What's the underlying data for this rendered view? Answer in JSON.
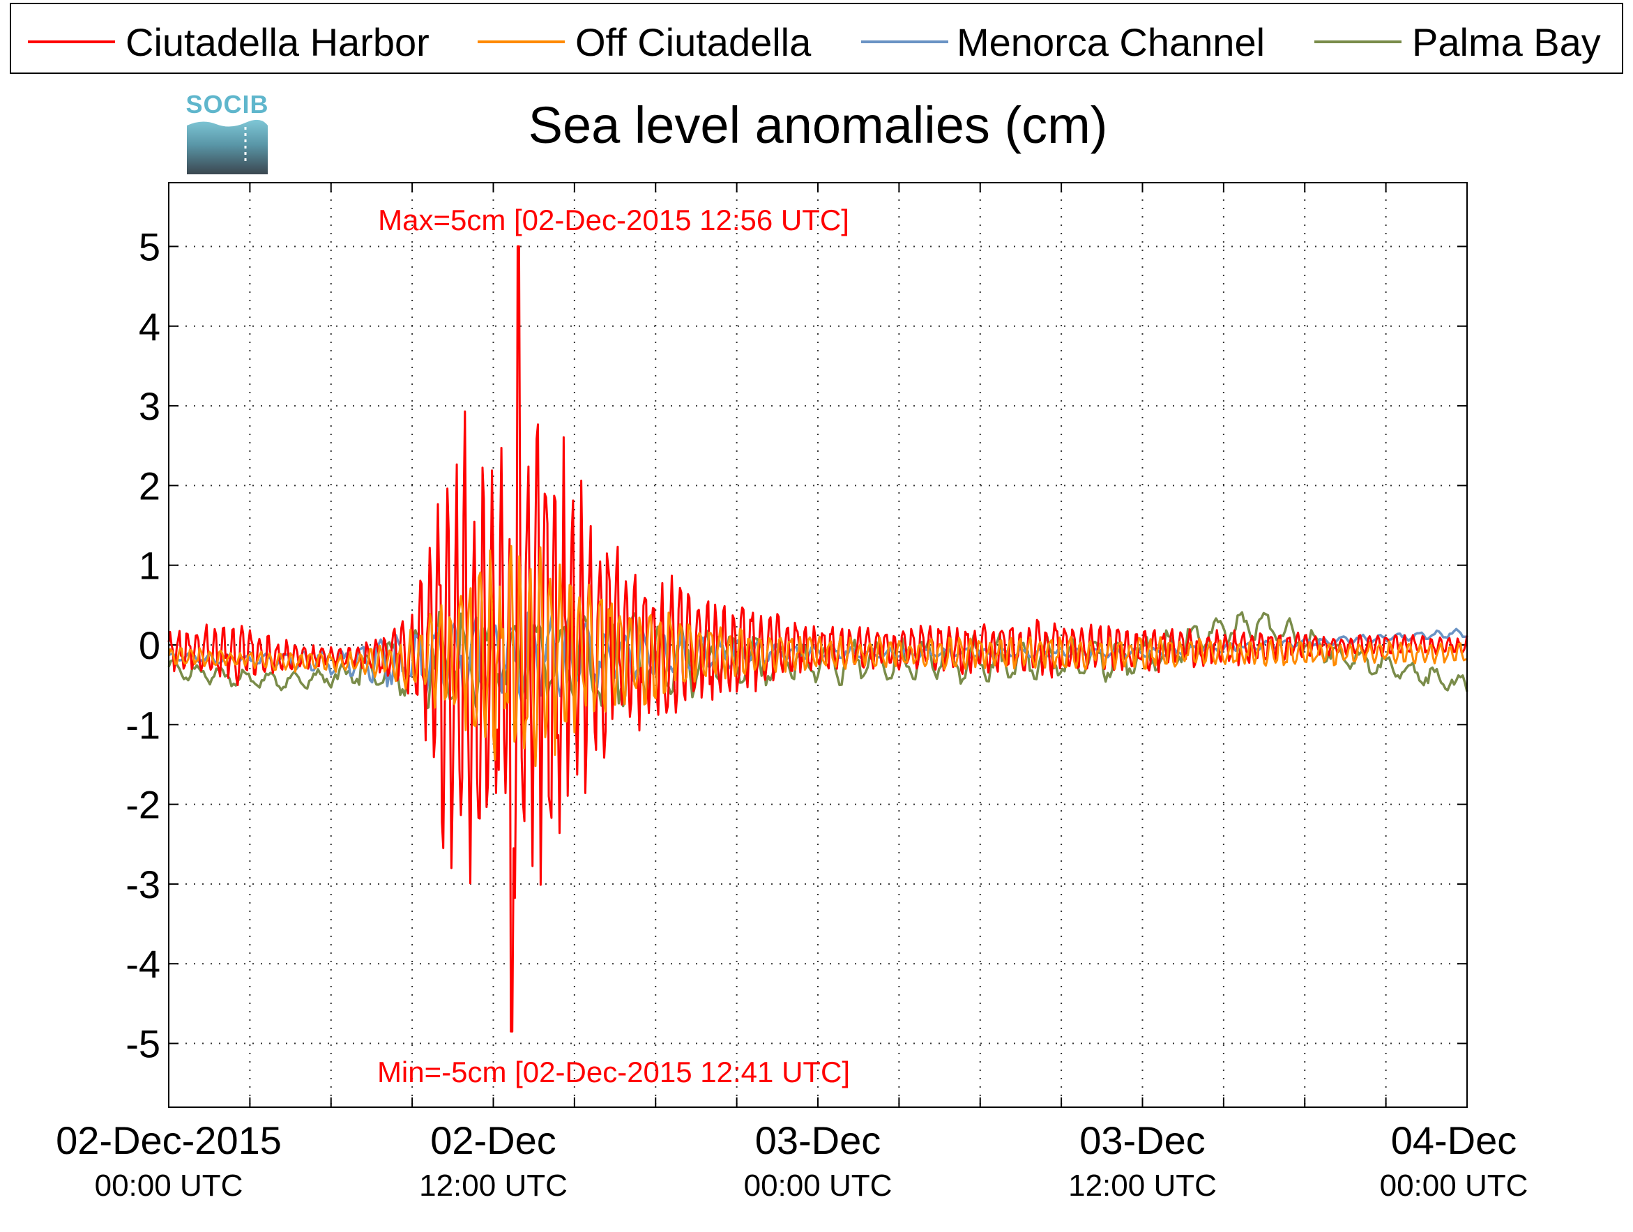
{
  "logo": {
    "text": "SOCIB"
  },
  "chart_data": {
    "type": "line",
    "title": "Sea level anomalies (cm)",
    "xlabel": "",
    "ylabel": "",
    "ylim": [
      -5.8,
      5.8
    ],
    "xlim_hours": [
      0,
      48
    ],
    "yticks": [
      5,
      4,
      3,
      2,
      1,
      0,
      -1,
      -2,
      -3,
      -4,
      -5
    ],
    "xticks": [
      {
        "at_hour": 0,
        "line1": "02-Dec-2015",
        "line2": "00:00 UTC"
      },
      {
        "at_hour": 12,
        "line1": "02-Dec",
        "line2": "12:00 UTC"
      },
      {
        "at_hour": 24,
        "line1": "03-Dec",
        "line2": "00:00 UTC"
      },
      {
        "at_hour": 36,
        "line1": "03-Dec",
        "line2": "12:00 UTC"
      },
      {
        "at_hour": 48,
        "line1": "04-Dec",
        "line2": "00:00 UTC"
      }
    ],
    "minor_xticks_hours": [
      3,
      6,
      9,
      15,
      18,
      21,
      27,
      30,
      33,
      39,
      42,
      45
    ],
    "grid": true,
    "legend_position": "top",
    "annotations": [
      {
        "text": "Max=5cm [02-Dec-2015 12:56 UTC]",
        "color": "#ff0000",
        "position": "top"
      },
      {
        "text": "Min=-5cm [02-Dec-2015 12:41 UTC]",
        "color": "#ff0000",
        "position": "bottom"
      }
    ],
    "series": [
      {
        "name": "Ciutadella Harbor",
        "color": "#ff0000"
      },
      {
        "name": "Off Ciutadella",
        "color": "#ff8a00"
      },
      {
        "name": "Menorca Channel",
        "color": "#6a93c4"
      },
      {
        "name": "Palma Bay",
        "color": "#7a8c4a"
      }
    ]
  }
}
